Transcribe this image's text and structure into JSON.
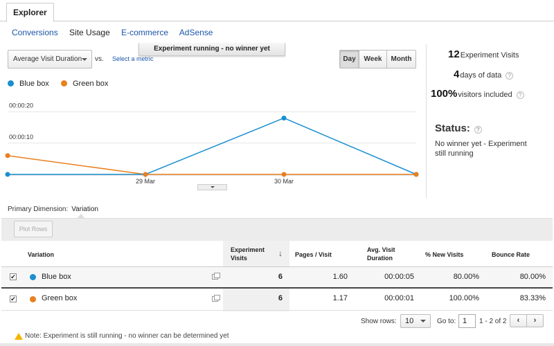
{
  "tabs": {
    "active": "Explorer"
  },
  "subnav": [
    {
      "label": "Conversions",
      "current": false
    },
    {
      "label": "Site Usage",
      "current": true
    },
    {
      "label": "E-commerce",
      "current": false
    },
    {
      "label": "AdSense",
      "current": false
    }
  ],
  "controls": {
    "metric": "Average Visit Duration",
    "vs": "vs.",
    "select_metric": "Select a metric",
    "banner": "Experiment running - no winner yet",
    "period": {
      "day": "Day",
      "week": "Week",
      "month": "Month",
      "selected": "Day"
    }
  },
  "summary": {
    "visits_value": "12",
    "visits_label": "Experiment Visits",
    "days_value": "4",
    "days_label": "days of data",
    "included_value": "100%",
    "included_label": "visitors included",
    "help_icon": "?",
    "status_title": "Status:",
    "status_text": "No winner yet - Experiment still running"
  },
  "chart_data": {
    "type": "line",
    "x": [
      "28 Mar",
      "29 Mar",
      "29 Mar 12:00",
      "30 Mar",
      "31 Mar"
    ],
    "xtick_labels": [
      "29 Mar",
      "30 Mar"
    ],
    "ytick_labels": [
      "00:00:20",
      "00:00:10"
    ],
    "series": [
      {
        "name": "Blue box",
        "color": "#1a8fd0",
        "values_seconds": [
          0,
          0,
          null,
          18,
          0
        ]
      },
      {
        "name": "Green box",
        "color": "#e8801f",
        "values_seconds": [
          6,
          0,
          null,
          0,
          0
        ]
      }
    ],
    "ylim_seconds": [
      0,
      23
    ],
    "grid": true,
    "legend_placement": "top-left"
  },
  "table": {
    "primary_dimension_label": "Primary Dimension:",
    "primary_dimension_value": "Variation",
    "plot_rows": "Plot Rows",
    "headers": {
      "variation": "Variation",
      "visits": "Experiment Visits",
      "pages": "Pages / Visit",
      "duration": "Avg. Visit Duration",
      "new_visits": "% New Visits",
      "bounce": "Bounce Rate"
    },
    "sort_icon": "↓",
    "rows": [
      {
        "name": "Blue box",
        "color": "#1a8fd0",
        "checked": "✔",
        "visits": "6",
        "pages": "1.60",
        "duration": "00:00:05",
        "new_visits": "80.00%",
        "bounce": "80.00%"
      },
      {
        "name": "Green box",
        "color": "#e8801f",
        "checked": "✔",
        "visits": "6",
        "pages": "1.17",
        "duration": "00:00:01",
        "new_visits": "100.00%",
        "bounce": "83.33%"
      }
    ]
  },
  "pager": {
    "show_rows_label": "Show rows:",
    "show_rows_value": "10",
    "goto_label": "Go to:",
    "goto_value": "1",
    "range": "1 - 2 of 2",
    "prev": "‹",
    "next": "›"
  },
  "note": "Note: Experiment is still running - no winner can be determined yet"
}
